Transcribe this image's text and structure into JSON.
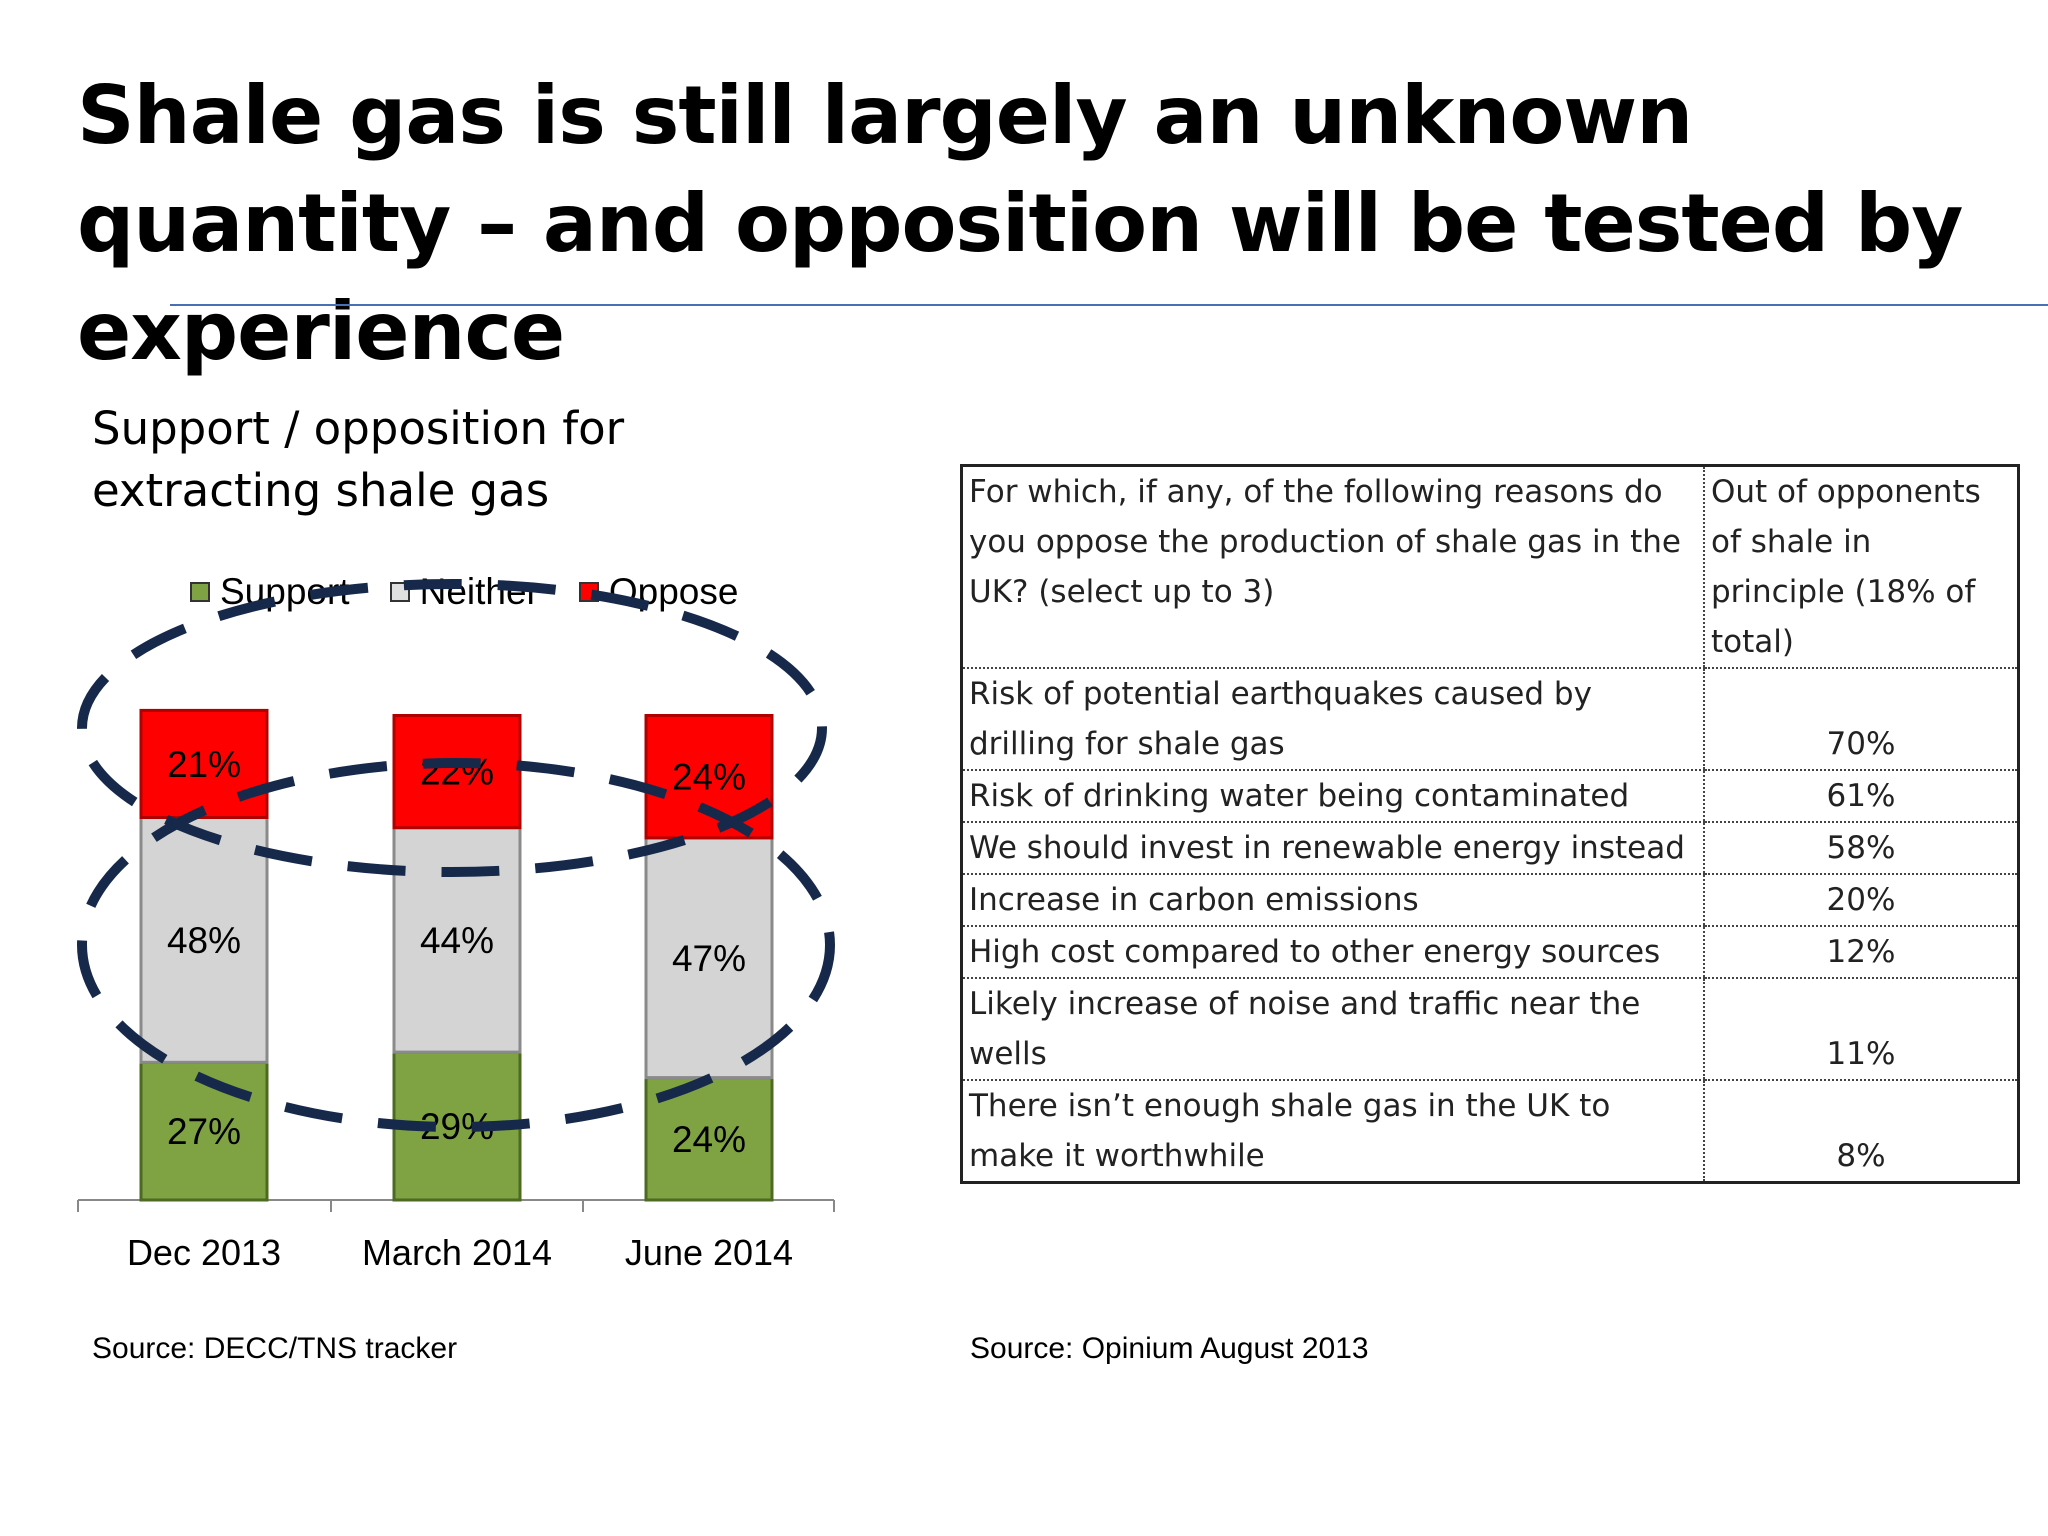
{
  "title": "Shale gas is still largely an unknown quantity – and opposition will be tested by experience",
  "chart_title": "Support / opposition for extracting shale gas",
  "colors": {
    "support": "#7fa343",
    "neither": "#d4d4d4",
    "oppose": "#ff0000",
    "ellipse": "#17294a",
    "rule": "#4a6fb5"
  },
  "chart_data": {
    "type": "bar",
    "stacked": true,
    "categories": [
      "Dec 2013",
      "March 2014",
      "June 2014"
    ],
    "series": [
      {
        "name": "Support",
        "values": [
          27,
          29,
          24
        ],
        "labels": [
          "27%",
          "29%",
          "24%"
        ]
      },
      {
        "name": "Neither",
        "values": [
          48,
          44,
          47
        ],
        "labels": [
          "48%",
          "44%",
          "47%"
        ]
      },
      {
        "name": "Oppose",
        "values": [
          21,
          22,
          24
        ],
        "labels": [
          "21%",
          "22%",
          "24%"
        ]
      }
    ],
    "legend_position": "top",
    "grid": false
  },
  "chart_source": "Source: DECC/TNS tracker",
  "table": {
    "header": {
      "question": "For which, if any, of the following reasons do you oppose the production of shale gas in the UK? (select up to 3)",
      "base": "Out of opponents of shale in principle (18% of total)"
    },
    "rows": [
      {
        "reason": "Risk of potential earthquakes caused by drilling for shale gas",
        "value": "70%"
      },
      {
        "reason": "Risk of drinking water being  contaminated",
        "value": "61%"
      },
      {
        "reason": "We should invest in renewable energy instead",
        "value": "58%"
      },
      {
        "reason": "Increase in carbon emissions",
        "value": "20%"
      },
      {
        "reason": "High cost compared to other energy sources",
        "value": "12%"
      },
      {
        "reason": "Likely increase of noise and traffic near the wells",
        "value": "11%"
      },
      {
        "reason": "There isn’t enough shale gas in the UK to make it worthwhile",
        "value": "8%"
      }
    ]
  },
  "table_source": "Source: Opinium August 2013"
}
